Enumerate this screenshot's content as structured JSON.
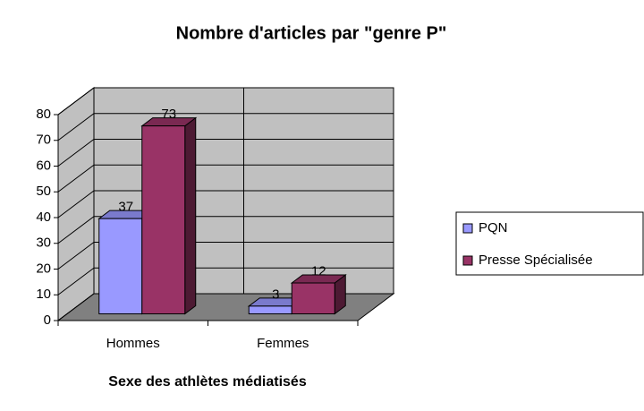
{
  "chart_data": {
    "type": "bar3d",
    "title": "Nombre d'articles par \"genre P\"",
    "x_label": "Sexe des athlètes médiatisés",
    "categories": [
      "Hommes",
      "Femmes"
    ],
    "series": [
      {
        "name": "PQN",
        "color": "#9999ff",
        "values": [
          37,
          3
        ]
      },
      {
        "name": "Presse Spécialisée",
        "color": "#993366",
        "values": [
          73,
          12
        ]
      }
    ],
    "ylim": [
      0,
      80
    ],
    "yticks": [
      0,
      10,
      20,
      30,
      40,
      50,
      60,
      70,
      80
    ],
    "grid": true,
    "legend": "right"
  }
}
